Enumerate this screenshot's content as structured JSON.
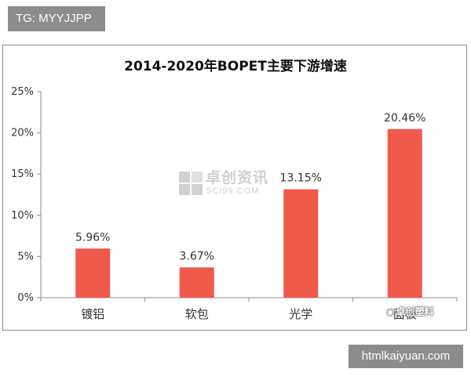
{
  "top_tag": "TG: MYYJJPP",
  "bottom_tag": "htmlkaiyuan.com",
  "watermark": {
    "cn": "卓创资讯",
    "en": "SCI99.COM"
  },
  "corner_watermark": "卓创塑料",
  "colors": {
    "bar": "#f0594a",
    "axis": "#8a8a8a",
    "text": "#333333"
  },
  "chart_data": {
    "type": "bar",
    "title": "2014-2020年BOPET主要下游增速",
    "categories": [
      "镀铝",
      "软包",
      "光学",
      "面板"
    ],
    "values": [
      5.96,
      3.67,
      13.15,
      20.46
    ],
    "data_labels": [
      "5.96%",
      "3.67%",
      "13.15%",
      "20.46%"
    ],
    "y_ticks": [
      0,
      5,
      10,
      15,
      20,
      25
    ],
    "y_tick_labels": [
      "0%",
      "5%",
      "10%",
      "15%",
      "20%",
      "25%"
    ],
    "ylim": [
      0,
      25
    ],
    "grid": false,
    "legend": "none"
  }
}
